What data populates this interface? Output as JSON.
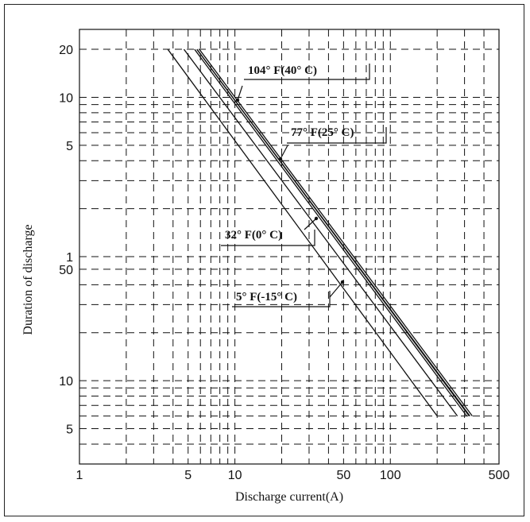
{
  "chart_data": {
    "type": "line",
    "title": "",
    "xlabel": "Discharge current(A)",
    "ylabel": "Duration of discharge",
    "x_scale": "log",
    "y_scale": "log",
    "xlim": [
      1,
      500
    ],
    "ylim_minutes": [
      3,
      1600
    ],
    "grid": true,
    "grid_style": "dashed",
    "line_color": "#111111",
    "x_ticks": [
      {
        "label": "1",
        "value": 1
      },
      {
        "label": "5",
        "value": 5
      },
      {
        "label": "10",
        "value": 10
      },
      {
        "label": "50",
        "value": 50
      },
      {
        "label": "100",
        "value": 100
      },
      {
        "label": "500",
        "value": 500
      }
    ],
    "y_ticks_hours": [
      {
        "label": "20",
        "value_minutes": 1200
      },
      {
        "label": "10",
        "value_minutes": 600
      },
      {
        "label": "5",
        "value_minutes": 300
      },
      {
        "label": "1",
        "value_minutes": 60
      }
    ],
    "y_ticks_minutes": [
      {
        "label": "50",
        "value_minutes": 50
      },
      {
        "label": "10",
        "value_minutes": 10
      },
      {
        "label": "5",
        "value_minutes": 5
      }
    ],
    "series": [
      {
        "name": "104° F(40° C)",
        "x": [
          5.7,
          325
        ],
        "y_minutes": [
          1200,
          6
        ],
        "label_anchor": [
          9.6,
          600
        ]
      },
      {
        "name": "77° F(25° C)",
        "x": [
          5.5,
          310
        ],
        "y_minutes": [
          1200,
          6
        ],
        "label_anchor": [
          24,
          240
        ]
      },
      {
        "name": "32° F(0° C)",
        "x": [
          4.7,
          270
        ],
        "y_minutes": [
          1200,
          6
        ],
        "label_anchor": [
          34,
          100
        ]
      },
      {
        "name": "5° F(-15° C)",
        "x": [
          3.7,
          200
        ],
        "y_minutes": [
          1200,
          6
        ],
        "label_anchor": [
          52,
          48
        ]
      }
    ]
  }
}
